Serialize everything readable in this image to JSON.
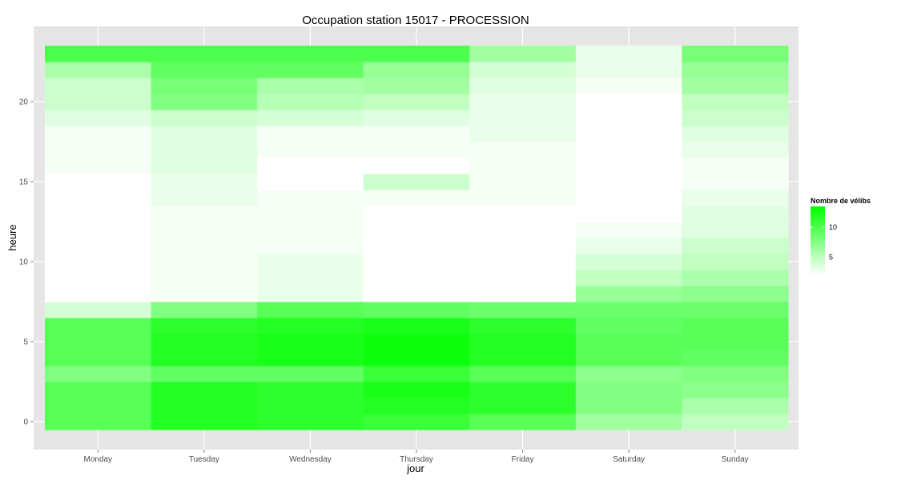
{
  "chart_data": {
    "type": "heatmap",
    "title": "Occupation station 15017 - PROCESSION",
    "xlabel": "jour",
    "ylabel": "heure",
    "categories": [
      "Monday",
      "Tuesday",
      "Wednesday",
      "Thursday",
      "Friday",
      "Saturday",
      "Sunday"
    ],
    "y_hours": [
      0,
      1,
      2,
      3,
      4,
      5,
      6,
      7,
      8,
      9,
      10,
      11,
      12,
      13,
      14,
      15,
      16,
      17,
      18,
      19,
      20,
      21,
      22,
      23
    ],
    "yticks": [
      0,
      5,
      10,
      15,
      20
    ],
    "ylim": [
      -0.5,
      23.5
    ],
    "grid": true,
    "legend": {
      "title": "Nombre de vélibs",
      "ticks": [
        5,
        10
      ],
      "low_color": "#ffffff",
      "high_color": "#00ff00",
      "range": [
        2,
        13.5
      ],
      "placement": "right"
    },
    "values": {
      "Monday": [
        10,
        10,
        10,
        8,
        10,
        10,
        10,
        4,
        1.5,
        1.5,
        1.5,
        1.5,
        1.5,
        0.5,
        1.5,
        1.5,
        2.5,
        2.5,
        2.5,
        3.5,
        4.5,
        4.5,
        6,
        10.5
      ],
      "Tuesday": [
        12.5,
        12.5,
        12.5,
        9.5,
        12.5,
        12.5,
        12,
        8,
        2.5,
        2.5,
        2.5,
        2.5,
        2.5,
        2.5,
        3,
        3,
        3.5,
        3.5,
        3.5,
        4.5,
        8,
        8.5,
        9.5,
        10.5
      ],
      "Wednesday": [
        12,
        12,
        12,
        9.5,
        13,
        13,
        12.5,
        10,
        3,
        3,
        3,
        2.5,
        2.5,
        2.5,
        2.5,
        1.5,
        1.5,
        2.5,
        2.5,
        4,
        5.5,
        6,
        9.5,
        10.5
      ],
      "Thursday": [
        11.5,
        12.5,
        13,
        11.5,
        13.5,
        13.5,
        13,
        9.5,
        2,
        2,
        2,
        2,
        2,
        2,
        2.5,
        4.5,
        2,
        2.5,
        2.5,
        3.5,
        5,
        6.5,
        7,
        10.5
      ],
      "Friday": [
        10,
        12,
        12,
        10,
        12.5,
        12.5,
        12,
        9,
        1.5,
        1.5,
        1,
        1,
        1,
        1.5,
        2.5,
        2.5,
        2.5,
        2.5,
        3,
        3,
        3,
        3.5,
        4,
        6.5
      ],
      "Saturday": [
        6.5,
        8,
        8,
        7.5,
        10,
        10,
        9.5,
        9,
        7,
        5,
        4,
        3,
        2.5,
        2,
        1,
        1,
        1,
        1,
        1.5,
        2,
        2,
        2.5,
        3,
        3
      ],
      "Sunday": [
        5,
        6,
        7.5,
        8,
        9.5,
        10,
        10,
        9,
        7.5,
        6,
        5,
        4.5,
        3.5,
        3.5,
        3,
        2.5,
        2.5,
        3,
        3.5,
        4.5,
        5,
        6.5,
        7,
        8.5
      ]
    }
  }
}
